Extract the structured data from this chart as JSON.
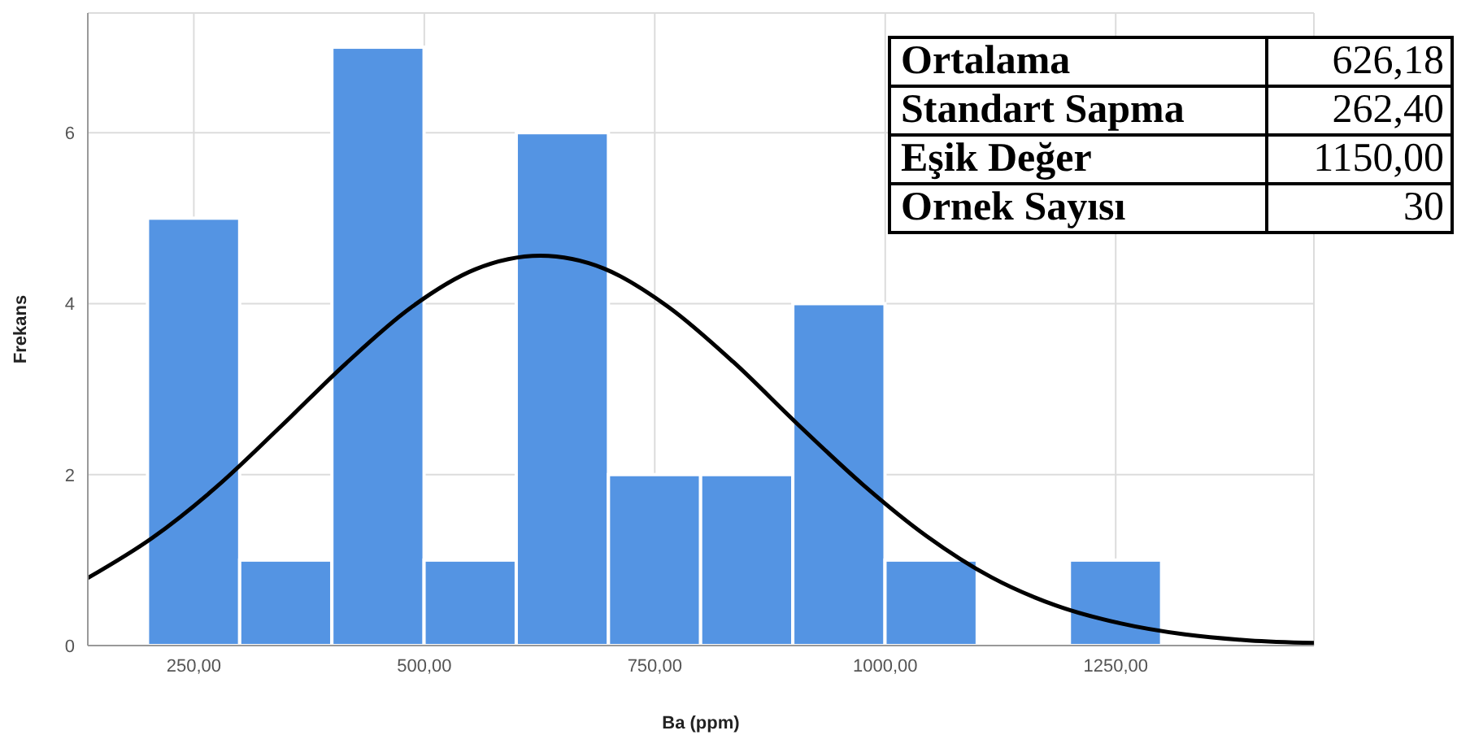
{
  "chart_data": {
    "type": "histogram",
    "xlabel": "Ba (ppm)",
    "ylabel": "Frekans",
    "bins": [
      200,
      300,
      400,
      500,
      600,
      700,
      800,
      900,
      1000,
      1100,
      1200,
      1300
    ],
    "values": [
      5,
      1,
      7,
      1,
      6,
      2,
      2,
      4,
      1,
      0,
      1
    ],
    "color": "#5494e3",
    "series": [
      {
        "type": "line",
        "color": "#000000",
        "x": [
          135,
          205,
          275,
          345,
          415,
          485,
          555,
          626,
          695,
          765,
          835,
          905,
          975,
          1045,
          1115,
          1185,
          1255,
          1325,
          1395,
          1465
        ],
        "values": [
          0.79,
          1.26,
          1.86,
          2.57,
          3.3,
          3.95,
          4.4,
          4.56,
          4.41,
          3.96,
          3.32,
          2.59,
          1.89,
          1.28,
          0.8,
          0.47,
          0.26,
          0.13,
          0.06,
          0.03
        ]
      }
    ],
    "xlim": [
      135,
      1465
    ],
    "xticks": [
      {
        "value": 250,
        "label": "250,00"
      },
      {
        "value": 500,
        "label": "500,00"
      },
      {
        "value": 750,
        "label": "750,00"
      },
      {
        "value": 1000,
        "label": "1000,00"
      },
      {
        "value": 1250,
        "label": "1250,00"
      }
    ],
    "ylim": [
      0,
      7.4
    ],
    "yticks": [
      0,
      2,
      4,
      6
    ],
    "grid": true,
    "marker": "none",
    "line_style": "solid",
    "annotations": [
      "Ortalama",
      "626,18",
      "Standart Sapma",
      "262,40",
      "Eşik Değer",
      "1150,00",
      "Ornek Sayısı",
      "30"
    ]
  }
}
